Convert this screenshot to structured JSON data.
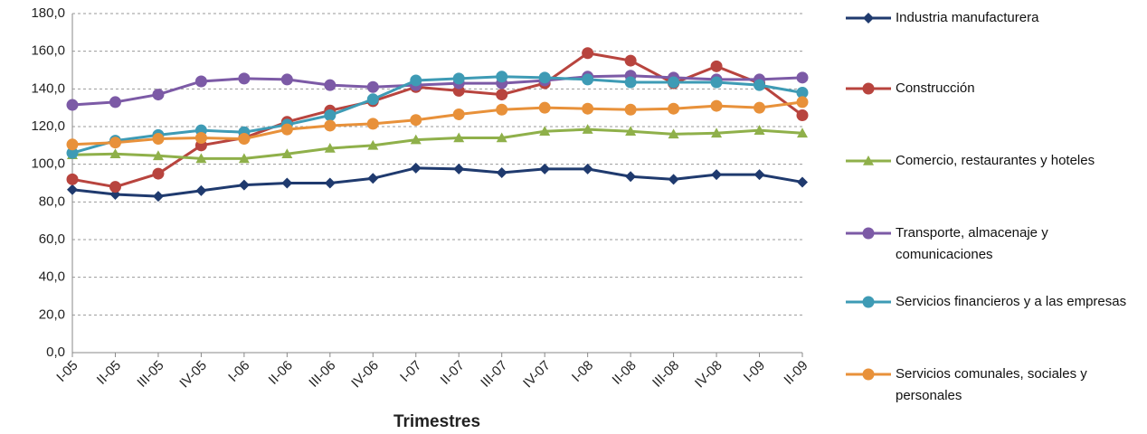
{
  "chart_data": {
    "type": "line",
    "x_label": "Trimestres",
    "categories": [
      "I-05",
      "II-05",
      "III-05",
      "IV-05",
      "I-06",
      "II-06",
      "III-06",
      "IV-06",
      "I-07",
      "II-07",
      "III-07",
      "IV-07",
      "I-08",
      "II-08",
      "III-08",
      "IV-08",
      "I-09",
      "II-09"
    ],
    "series": [
      {
        "name": "Industria manufacturera",
        "color": "#1f3a6e",
        "marker": "diamond",
        "values": [
          86.5,
          84,
          83,
          86,
          89,
          90,
          90,
          92.5,
          98,
          97.5,
          95.5,
          97.5,
          97.5,
          93.5,
          92,
          94.5,
          94.5,
          90.5
        ]
      },
      {
        "name": "Construcción",
        "color": "#b8443e",
        "marker": "circle",
        "values": [
          92,
          88,
          95,
          110,
          114,
          122.5,
          128.5,
          133.5,
          141,
          139,
          137,
          143,
          159,
          155,
          143,
          152,
          143,
          126
        ]
      },
      {
        "name": "Comercio, restaurantes y hoteles",
        "color": "#8fb04a",
        "marker": "triangle",
        "values": [
          105,
          105.5,
          104.5,
          103,
          103,
          105.5,
          108.5,
          110,
          113,
          114,
          114,
          117.5,
          118.5,
          117.5,
          116,
          116.5,
          118,
          116.5
        ]
      },
      {
        "name": "Transporte, almacenaje y comunicaciones",
        "color": "#7c5aa6",
        "marker": "circle",
        "values": [
          131.5,
          133,
          137,
          144,
          145.5,
          145,
          142,
          141,
          142,
          143,
          143,
          144.5,
          146.5,
          147,
          146,
          145,
          145,
          146
        ]
      },
      {
        "name": "Servicios financieros y a las empresas",
        "color": "#3e9bb5",
        "marker": "circle",
        "values": [
          106,
          112.5,
          115.5,
          118,
          117,
          121,
          126,
          134.5,
          144.5,
          145.5,
          146.5,
          146,
          145,
          143.5,
          143.5,
          143.5,
          142,
          138
        ]
      },
      {
        "name": "Servicios comunales, sociales y personales",
        "color": "#e8913a",
        "marker": "circle",
        "values": [
          110.5,
          111.5,
          113.5,
          114,
          113.5,
          118.5,
          120.5,
          121.5,
          123.5,
          126.5,
          129,
          130,
          129.5,
          129,
          129.5,
          131,
          130,
          133
        ]
      }
    ],
    "ylim": [
      0,
      180
    ],
    "yticks": [
      {
        "value": 0,
        "label": "0,0"
      },
      {
        "value": 20,
        "label": "20,0"
      },
      {
        "value": 40,
        "label": "40,0"
      },
      {
        "value": 60,
        "label": "60,0"
      },
      {
        "value": 80,
        "label": "80,0"
      },
      {
        "value": 100,
        "label": "100,0"
      },
      {
        "value": 120,
        "label": "120,0"
      },
      {
        "value": 140,
        "label": "140,0"
      },
      {
        "value": 160,
        "label": "160,0"
      },
      {
        "value": 180,
        "label": "180,0"
      }
    ],
    "grid": true,
    "legend": "right"
  }
}
